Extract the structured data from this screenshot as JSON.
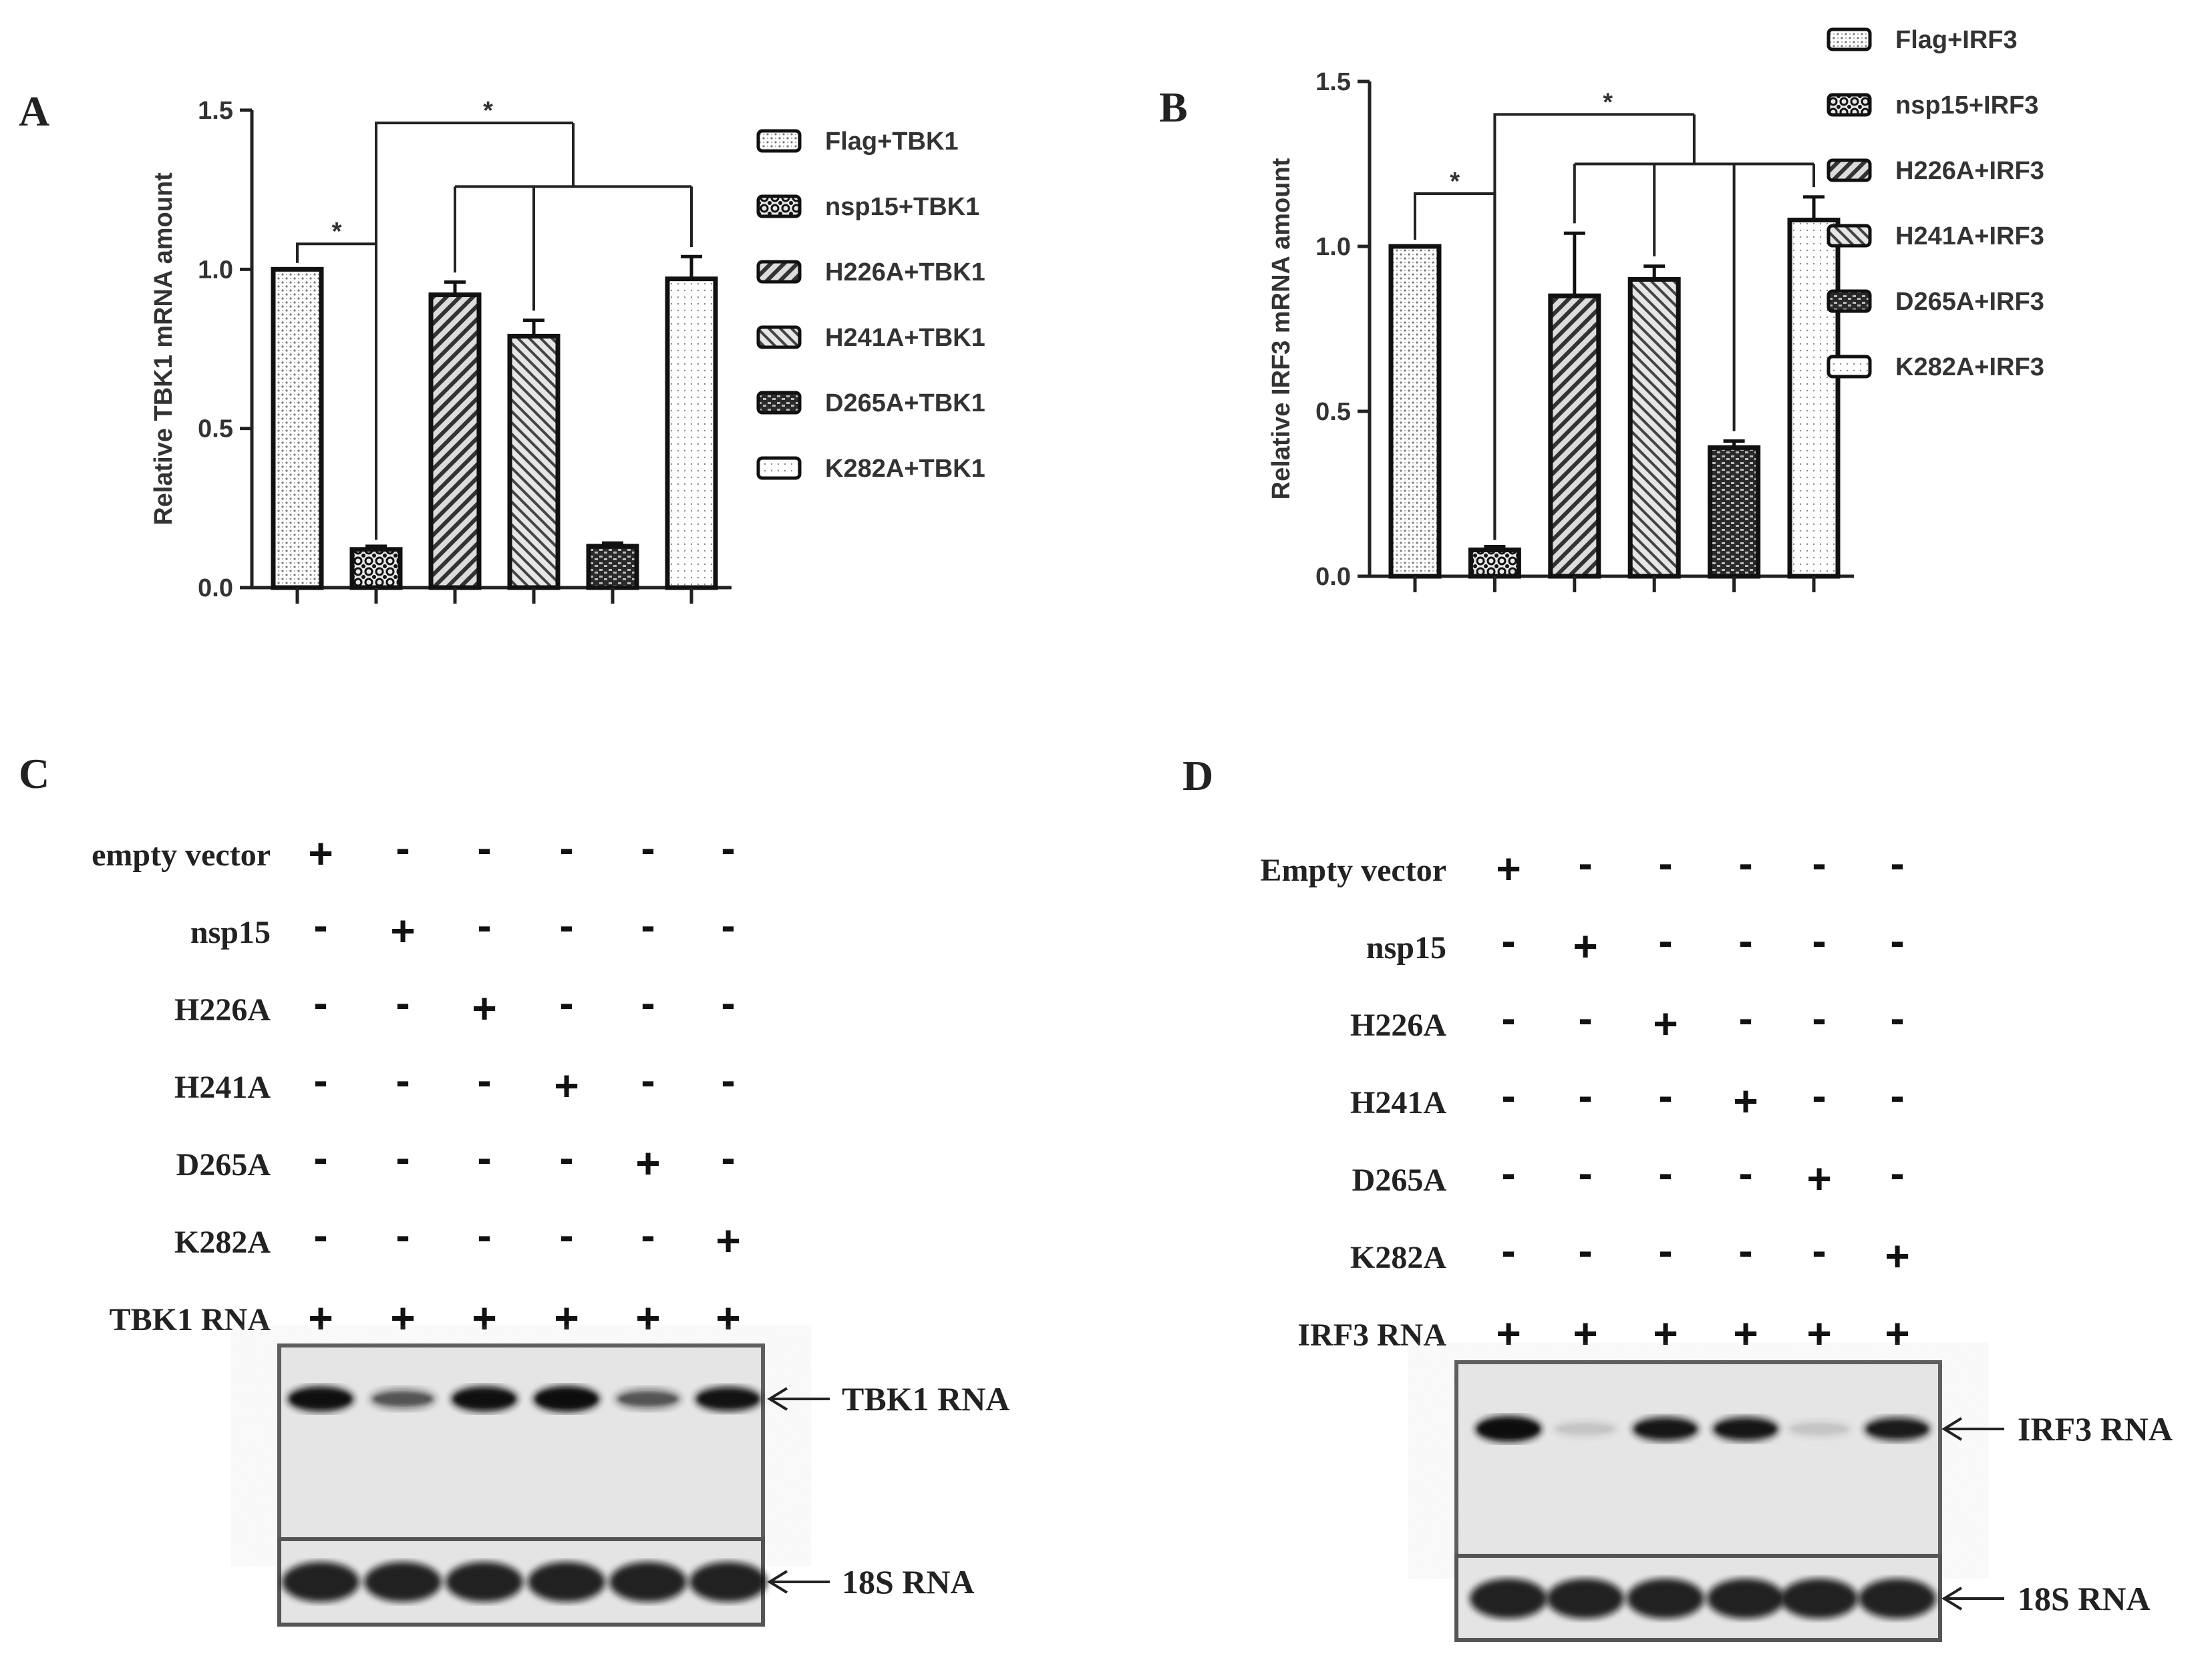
{
  "panels": {
    "A": "A",
    "B": "B",
    "C": "C",
    "D": "D"
  },
  "chart_data": [
    {
      "type": "bar",
      "panel": "A",
      "ylabel": "Relative TBK1 mRNA amount",
      "xlabel": "",
      "ylim": [
        0,
        1.5
      ],
      "yticks": [
        "0.0",
        "0.5",
        "1.0",
        "1.5"
      ],
      "categories": [
        "Flag+TBK1",
        "nsp15+TBK1",
        "H226A+TBK1",
        "H241A+TBK1",
        "D265A+TBK1",
        "K282A+TBK1"
      ],
      "values": [
        1.0,
        0.12,
        0.92,
        0.79,
        0.13,
        0.97
      ],
      "errors": [
        0.0,
        0.01,
        0.04,
        0.05,
        0.01,
        0.07
      ],
      "legend": [
        "Flag+TBK1",
        "nsp15+TBK1",
        "H226A+TBK1",
        "H241A+TBK1",
        "D265A+TBK1",
        "K282A+TBK1"
      ],
      "legend_position": "right",
      "significance": [
        "*",
        "*"
      ]
    },
    {
      "type": "bar",
      "panel": "B",
      "ylabel": "Relative IRF3 mRNA amount",
      "xlabel": "",
      "ylim": [
        0,
        1.5
      ],
      "yticks": [
        "0.0",
        "0.5",
        "1.0",
        "1.5"
      ],
      "categories": [
        "Flag+IRF3",
        "nsp15+IRF3",
        "H226A+IRF3",
        "H241A+IRF3",
        "D265A+IRF3",
        "K282A+IRF3"
      ],
      "values": [
        1.0,
        0.08,
        0.85,
        0.9,
        0.39,
        1.08
      ],
      "errors": [
        0.0,
        0.01,
        0.19,
        0.04,
        0.02,
        0.07
      ],
      "legend": [
        "Flag+IRF3",
        "nsp15+IRF3",
        "H226A+IRF3",
        "H241A+IRF3",
        "D265A+IRF3",
        "K282A+IRF3"
      ],
      "legend_position": "right",
      "significance": [
        "*",
        "*"
      ]
    }
  ],
  "blots": [
    {
      "panel": "C",
      "rows": [
        {
          "label": "empty vector",
          "marks": [
            "+",
            "-",
            "-",
            "-",
            "-",
            "-"
          ]
        },
        {
          "label": "nsp15",
          "marks": [
            "-",
            "+",
            "-",
            "-",
            "-",
            "-"
          ]
        },
        {
          "label": "H226A",
          "marks": [
            "-",
            "-",
            "+",
            "-",
            "-",
            "-"
          ]
        },
        {
          "label": "H241A",
          "marks": [
            "-",
            "-",
            "-",
            "+",
            "-",
            "-"
          ]
        },
        {
          "label": "D265A",
          "marks": [
            "-",
            "-",
            "-",
            "-",
            "+",
            "-"
          ]
        },
        {
          "label": "K282A",
          "marks": [
            "-",
            "-",
            "-",
            "-",
            "-",
            "+"
          ]
        },
        {
          "label": "TBK1 RNA",
          "marks": [
            "+",
            "+",
            "+",
            "+",
            "+",
            "+"
          ]
        }
      ],
      "band_intensity": [
        0.95,
        0.45,
        0.95,
        1.0,
        0.45,
        0.9
      ],
      "target_label": "TBK1 RNA",
      "control_label": "18S RNA"
    },
    {
      "panel": "D",
      "rows": [
        {
          "label": "Empty vector",
          "marks": [
            "+",
            "-",
            "-",
            "-",
            "-",
            "-"
          ]
        },
        {
          "label": "nsp15",
          "marks": [
            "-",
            "+",
            "-",
            "-",
            "-",
            "-"
          ]
        },
        {
          "label": "H226A",
          "marks": [
            "-",
            "-",
            "+",
            "-",
            "-",
            "-"
          ]
        },
        {
          "label": "H241A",
          "marks": [
            "-",
            "-",
            "-",
            "+",
            "-",
            "-"
          ]
        },
        {
          "label": "D265A",
          "marks": [
            "-",
            "-",
            "-",
            "-",
            "+",
            "-"
          ]
        },
        {
          "label": "K282A",
          "marks": [
            "-",
            "-",
            "-",
            "-",
            "-",
            "+"
          ]
        },
        {
          "label": "IRF3 RNA",
          "marks": [
            "+",
            "+",
            "+",
            "+",
            "+",
            "+"
          ]
        }
      ],
      "band_intensity": [
        1.0,
        0.08,
        0.85,
        0.85,
        0.08,
        0.8
      ],
      "target_label": "IRF3 RNA",
      "control_label": "18S RNA"
    }
  ]
}
